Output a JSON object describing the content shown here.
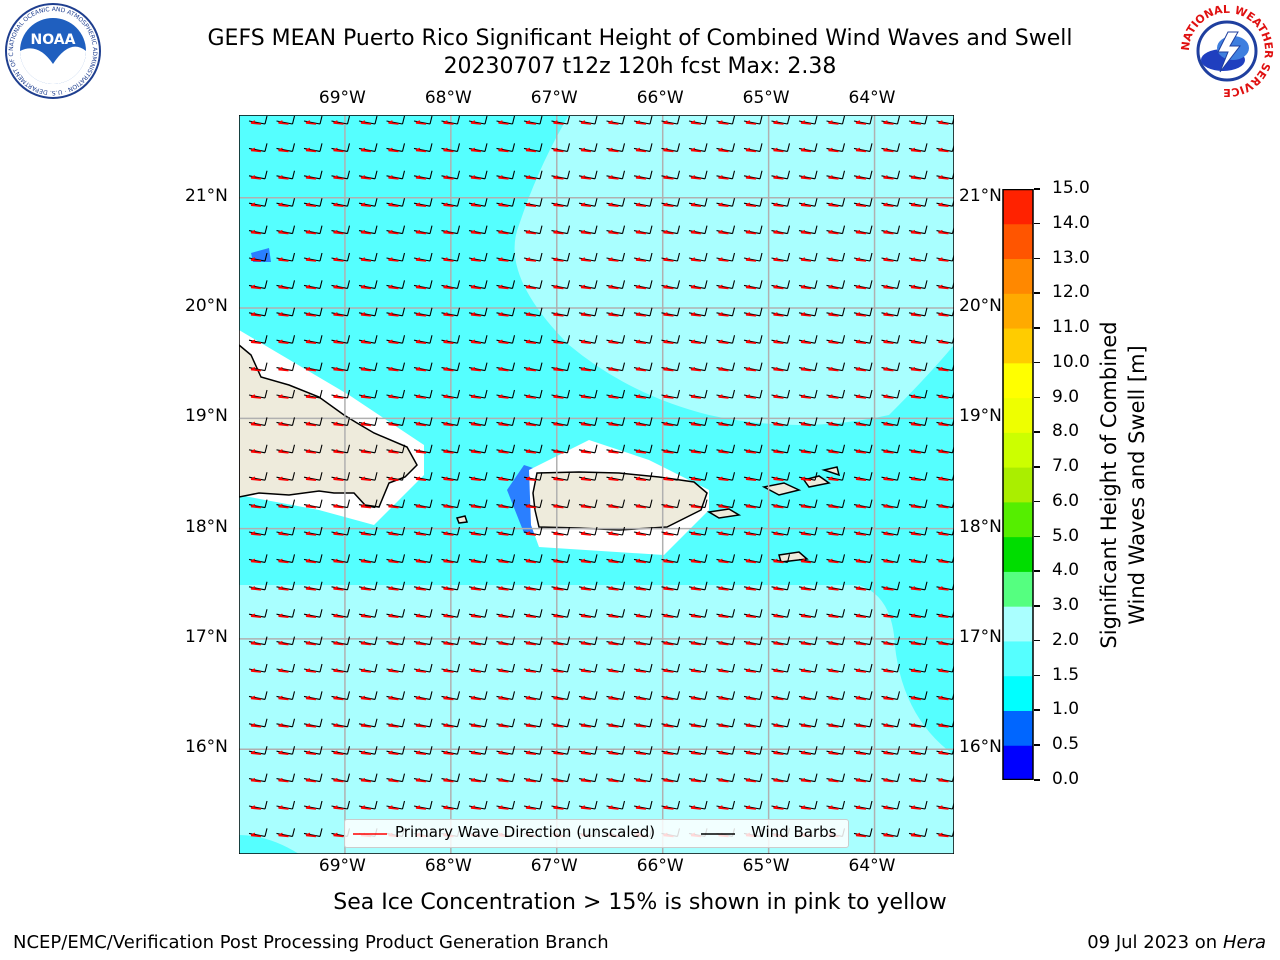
{
  "header": {
    "title_line1": "GEFS MEAN Puerto Rico Significant Height of Combined Wind Waves and Swell",
    "title_line2": "20230707 t12z 120h fcst   Max: 2.38",
    "left_logo_text": "NOAA",
    "left_logo_ring_text": "NATIONAL OCEANIC AND ATMOSPHERIC ADMINISTRATION · U.S. DEPARTMENT OF COMMERCE",
    "right_logo_ring_text": "NATIONAL WEATHER SERVICE"
  },
  "map": {
    "lon_labels": [
      "69°W",
      "68°W",
      "67°W",
      "66°W",
      "65°W",
      "64°W"
    ],
    "lat_labels": [
      "21°N",
      "20°N",
      "19°N",
      "18°N",
      "17°N",
      "16°N"
    ],
    "lon_range": [
      -70.0,
      -63.25
    ],
    "lat_range": [
      15.05,
      21.75
    ],
    "colors": {
      "land": "#eeebdc",
      "open_sea": "#55ffff",
      "calm_sea": "#a9ffff",
      "blue_patch": "#2a7fff",
      "wave_arrow": "#ff0000",
      "wind_barb": "#000000",
      "grid": "#b0b0b0"
    }
  },
  "legend": {
    "wave_label": "Primary Wave Direction (unscaled)",
    "wind_label": "Wind Barbs"
  },
  "colorbar": {
    "label_line1": "Significant Height of Combined",
    "label_line2": "Wind Waves and Swell [m]",
    "ticks": [
      "0.0",
      "0.5",
      "1.0",
      "1.5",
      "2.0",
      "3.0",
      "4.0",
      "5.0",
      "6.0",
      "7.0",
      "8.0",
      "9.0",
      "10.0",
      "11.0",
      "12.0",
      "13.0",
      "14.0",
      "15.0"
    ],
    "colors": [
      "#0000ff",
      "#0066ff",
      "#00ffff",
      "#55ffff",
      "#aaffff",
      "#55ff80",
      "#00dd00",
      "#55ee00",
      "#aaee00",
      "#ccff00",
      "#eeff00",
      "#ffff00",
      "#ffcc00",
      "#ffaa00",
      "#ff8800",
      "#ff5500",
      "#ff2200",
      "#ff0000"
    ]
  },
  "sea_ice_note": "Sea Ice Concentration > 15% is shown in pink to yellow",
  "footer": {
    "left": "NCEP/EMC/Verification Post Processing Product Generation Branch",
    "date": "09 Jul 2023 on ",
    "host": "Hera"
  }
}
